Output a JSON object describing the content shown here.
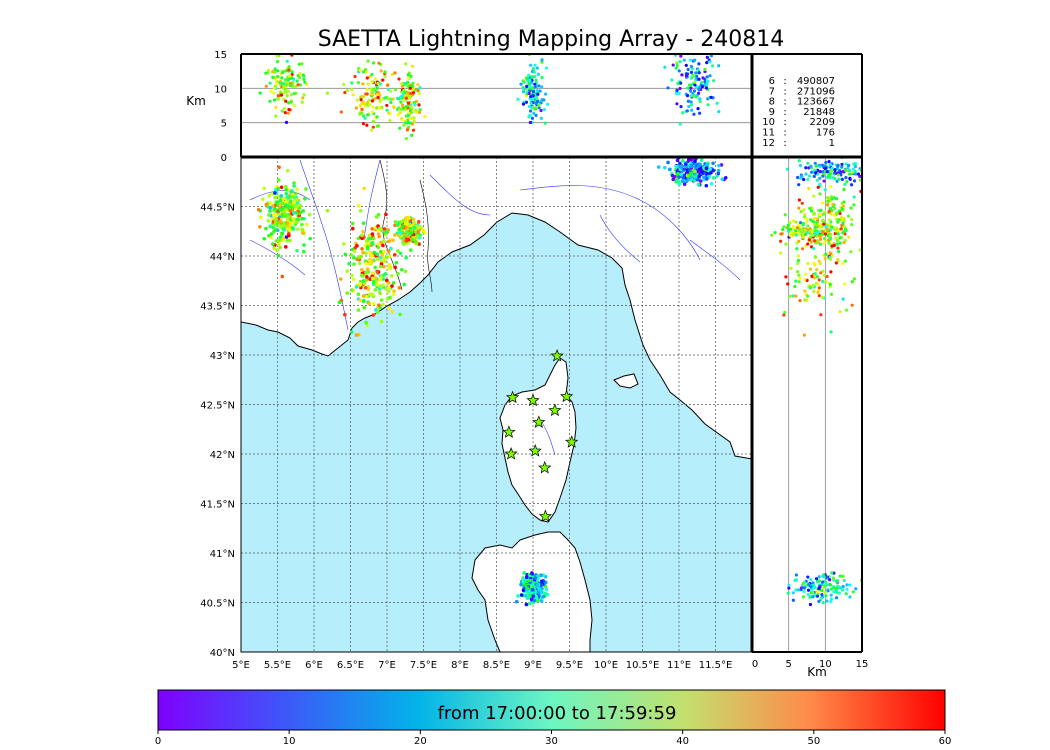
{
  "chart_data": {
    "type": "scatter",
    "title": "SAETTA Lightning Mapping Array - 240814",
    "map": {
      "lon_range": [
        5,
        12
      ],
      "lat_range": [
        40,
        45
      ],
      "lon_ticks": [
        "5°E",
        "5.5°E",
        "6°E",
        "6.5°E",
        "7°E",
        "7.5°E",
        "8°E",
        "8.5°E",
        "9°E",
        "9.5°E",
        "10°E",
        "10.5°E",
        "11°E",
        "11.5°E"
      ],
      "lat_ticks": [
        "40°N",
        "40.5°N",
        "41°N",
        "41.5°N",
        "42°N",
        "42.5°N",
        "43°N",
        "43.5°N",
        "44°N",
        "44.5°N"
      ],
      "grid": true,
      "sea_color": "#b7eefb",
      "station_color": "#7cfc00"
    },
    "altitude_panel": {
      "ylabel": "Km",
      "yticks": [
        "0",
        "5",
        "10",
        "15"
      ],
      "ylim": [
        0,
        15
      ]
    },
    "side_panel": {
      "xlabel": "Km",
      "xticks": [
        "0",
        "5",
        "10",
        "15"
      ],
      "xlim": [
        0,
        15
      ]
    },
    "station_counts": {
      "rows": [
        {
          "stations": "6",
          "sep": ":",
          "count": "490807",
          "color": "#000000"
        },
        {
          "stations": "7",
          "sep": ":",
          "count": "271096",
          "color": "#ff0000"
        },
        {
          "stations": "8",
          "sep": ":",
          "count": "123667",
          "color": "#000000"
        },
        {
          "stations": "9",
          "sep": ":",
          "count": "21848",
          "color": "#000000"
        },
        {
          "stations": "10",
          "sep": ":",
          "count": "2209",
          "color": "#000000"
        },
        {
          "stations": "11",
          "sep": ":",
          "count": "176",
          "color": "#000000"
        },
        {
          "stations": "12",
          "sep": ":",
          "count": "1",
          "color": "#000000"
        }
      ]
    },
    "colorbar": {
      "label": "from 17:00:00 to 17:59:59",
      "range": [
        0,
        60
      ],
      "ticks": [
        "0",
        "10",
        "20",
        "30",
        "40",
        "50",
        "60"
      ],
      "colormap": "rainbow"
    },
    "stations": [
      {
        "lon": 8.72,
        "lat": 42.57
      },
      {
        "lon": 9.0,
        "lat": 42.54
      },
      {
        "lon": 9.33,
        "lat": 42.99
      },
      {
        "lon": 9.46,
        "lat": 42.58
      },
      {
        "lon": 9.3,
        "lat": 42.44
      },
      {
        "lon": 9.08,
        "lat": 42.32
      },
      {
        "lon": 8.67,
        "lat": 42.22
      },
      {
        "lon": 8.7,
        "lat": 42.0
      },
      {
        "lon": 9.03,
        "lat": 42.03
      },
      {
        "lon": 9.53,
        "lat": 42.12
      },
      {
        "lon": 9.16,
        "lat": 41.86
      },
      {
        "lon": 9.17,
        "lat": 41.37
      }
    ],
    "storm_clusters": [
      {
        "lon": 5.6,
        "lat": 44.4,
        "lon_spread": 0.3,
        "lat_spread": 0.3,
        "time_min": 40,
        "alt_km": 11
      },
      {
        "lon": 6.8,
        "lat": 43.85,
        "lon_spread": 0.35,
        "lat_spread": 0.55,
        "time_min": 45,
        "alt_km": 9
      },
      {
        "lon": 7.3,
        "lat": 44.25,
        "lon_spread": 0.15,
        "lat_spread": 0.12,
        "time_min": 42,
        "alt_km": 8
      },
      {
        "lon": 11.2,
        "lat": 44.85,
        "lon_spread": 0.3,
        "lat_spread": 0.12,
        "time_min": 15,
        "alt_km": 11
      },
      {
        "lon": 9.0,
        "lat": 40.65,
        "lon_spread": 0.15,
        "lat_spread": 0.15,
        "time_min": 20,
        "alt_km": 9
      }
    ]
  }
}
